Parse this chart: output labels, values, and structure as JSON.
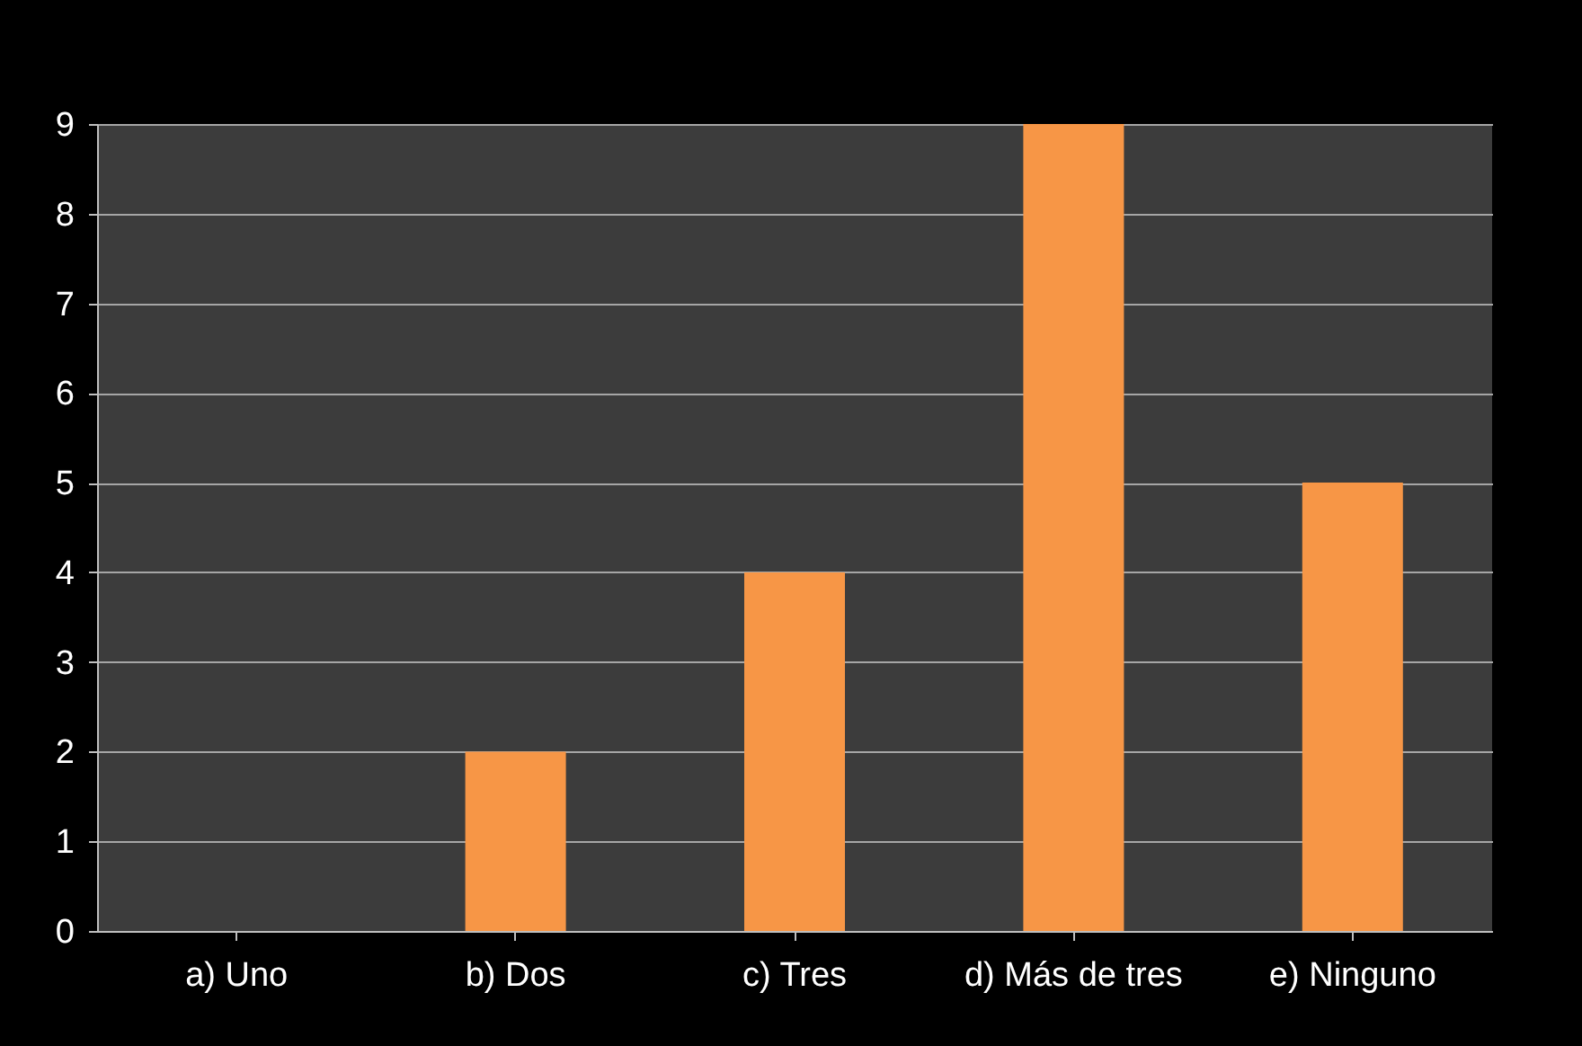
{
  "chart_data": {
    "type": "bar",
    "categories": [
      "a) Uno",
      "b) Dos",
      "c) Tres",
      "d) Más de tres",
      "e) Ninguno"
    ],
    "values": [
      0,
      2,
      4,
      9,
      5
    ],
    "color": "#f79646",
    "ylim": [
      0,
      9
    ],
    "yticks": [
      0,
      1,
      2,
      3,
      4,
      5,
      6,
      7,
      8,
      9
    ],
    "grid": "y"
  }
}
